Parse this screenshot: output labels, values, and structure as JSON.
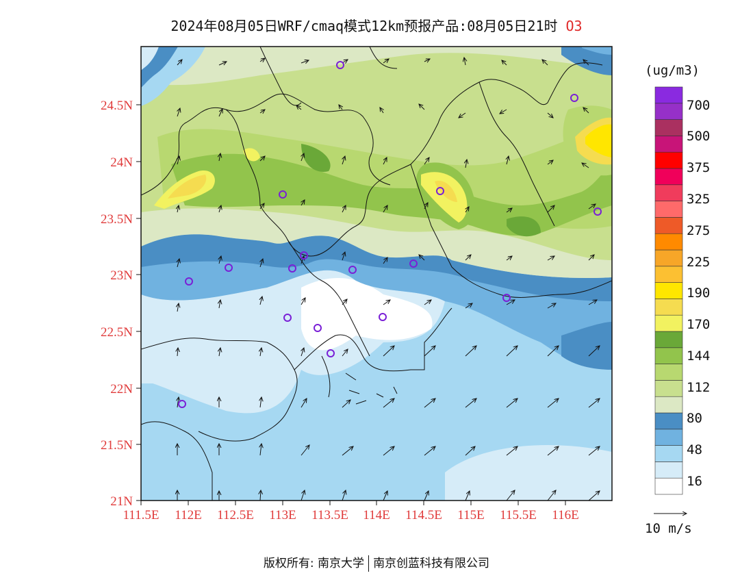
{
  "title": {
    "text": "2024年08月05日WRF/cmaq模式12km预报产品:08月05日21时",
    "species": "O3"
  },
  "colors": {
    "axis_label": "#e03a3a",
    "map_frame": "#111111",
    "marker": "#7a1fd6",
    "wind_arrow": "#111111"
  },
  "map": {
    "lon_labels": [
      "111.5E",
      "112E",
      "112.5E",
      "113E",
      "113.5E",
      "114E",
      "114.5E",
      "115E",
      "115.5E",
      "116E"
    ],
    "lat_labels": [
      "24.5N",
      "24N",
      "23.5N",
      "23N",
      "22.5N",
      "22N",
      "21.5N",
      "21N"
    ]
  },
  "legend": {
    "unit": "(ug/m3)",
    "labels": [
      "700",
      "500",
      "375",
      "325",
      "275",
      "225",
      "190",
      "170",
      "144",
      "112",
      "80",
      "48",
      "16"
    ],
    "colors": [
      "#ffffff",
      "#d6ecf8",
      "#a6d8f2",
      "#70b2e0",
      "#4a8ec4",
      "#dce8c4",
      "#c8df8e",
      "#b8d870",
      "#92c44c",
      "#6aa838",
      "#f2f260",
      "#f5dc50",
      "#ffe600",
      "#fcc032",
      "#f7a628",
      "#ff8a00",
      "#ee5a28",
      "#ff6a6a",
      "#f03c5c",
      "#f0005a",
      "#ff0000",
      "#c81478",
      "#aa3060",
      "#9630c8",
      "#8a2ae0"
    ],
    "wind_scale": "10 m/s"
  },
  "footer": {
    "left": "版权所有: 南京大学",
    "right": "南京创蓝科技有限公司"
  }
}
